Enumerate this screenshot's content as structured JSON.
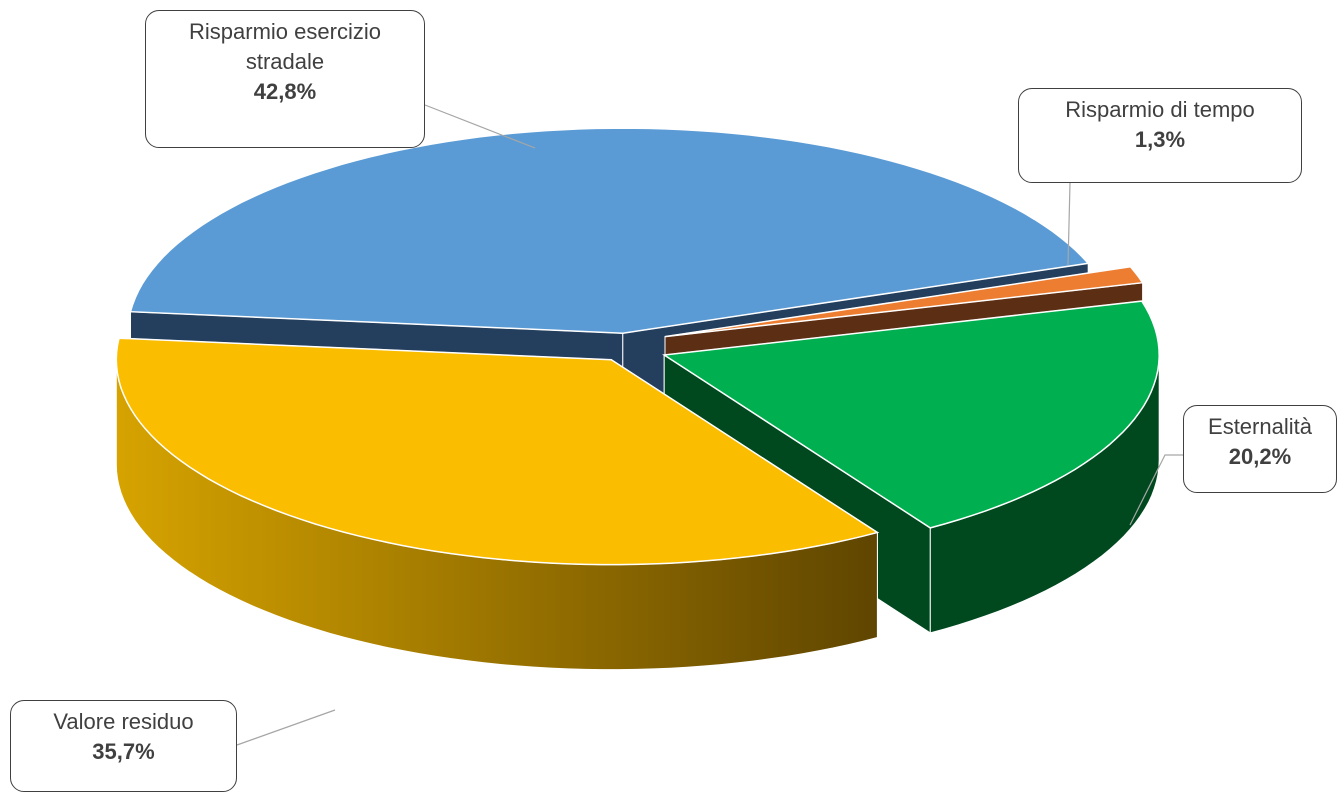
{
  "chart_data": {
    "type": "pie",
    "categories": [
      "Risparmio esercizio stradale",
      "Risparmio di tempo",
      "Esternalità",
      "Valore residuo"
    ],
    "values": [
      42.8,
      1.3,
      20.2,
      35.7
    ],
    "value_labels": [
      "42,8%",
      "1,3%",
      "20,2%",
      "35,7%"
    ],
    "colors": [
      "#5b9bd5",
      "#ed7d31",
      "#00b050",
      "#fbbd00"
    ]
  }
}
